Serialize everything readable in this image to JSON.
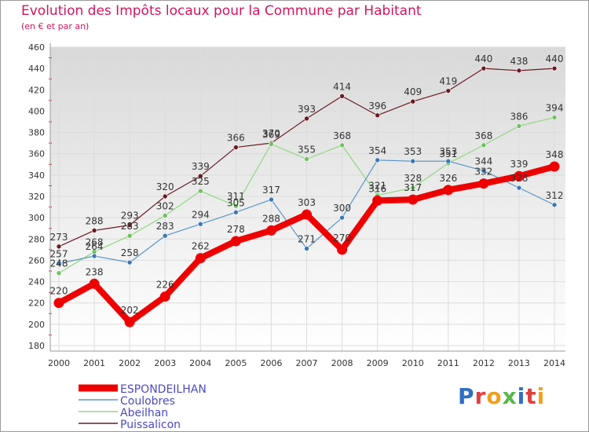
{
  "title": "Evolution des Impôts locaux pour la Commune par Habitant",
  "subtitle": "(en € et par an)",
  "logo_text": "Proxiti",
  "colors": {
    "title": "#d4145a",
    "axis_text": "#333333",
    "grid": "#dcdcdc",
    "background_top": "#d9d9d9",
    "background_bottom": "#ffffff"
  },
  "chart_data": {
    "type": "line",
    "x": [
      2000,
      2001,
      2002,
      2003,
      2004,
      2005,
      2006,
      2007,
      2008,
      2009,
      2010,
      2011,
      2012,
      2013,
      2014
    ],
    "ylim": [
      180,
      460
    ],
    "yticks": [
      180,
      200,
      220,
      240,
      260,
      280,
      300,
      320,
      340,
      360,
      380,
      400,
      420,
      440,
      460
    ],
    "legend_position": "bottom-left",
    "grid": true,
    "series": [
      {
        "name": "Puissalicon",
        "color": "#6b1a24",
        "marker": "#6b1a24",
        "width": 1.2,
        "values": [
          273,
          288,
          293,
          320,
          339,
          366,
          370,
          393,
          414,
          396,
          409,
          419,
          440,
          438,
          440
        ]
      },
      {
        "name": "Abeilhan",
        "color": "#90d880",
        "marker": "#70c060",
        "width": 1.2,
        "values": [
          248,
          268,
          283,
          302,
          325,
          311,
          369,
          355,
          368,
          321,
          328,
          351,
          368,
          386,
          394
        ]
      },
      {
        "name": "Coulobres",
        "color": "#5a96c8",
        "marker": "#3a78b4",
        "width": 1.2,
        "values": [
          257,
          264,
          258,
          283,
          294,
          305,
          317,
          271,
          300,
          354,
          353,
          353,
          344,
          328,
          312
        ]
      },
      {
        "name": "ESPONDEILHAN",
        "color": "#ee0000",
        "marker": "#ee0000",
        "width": 8,
        "values": [
          220,
          238,
          202,
          226,
          262,
          278,
          288,
          303,
          270,
          316,
          317,
          326,
          332,
          339,
          348
        ]
      }
    ]
  }
}
